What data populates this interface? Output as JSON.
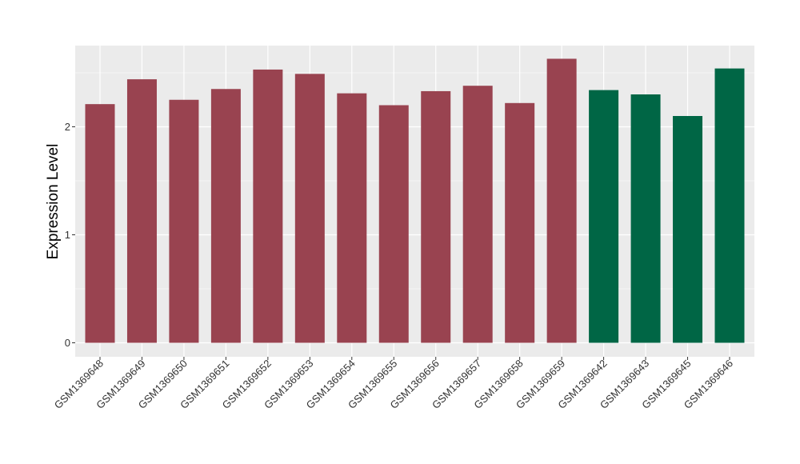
{
  "chart_data": {
    "type": "bar",
    "title": "",
    "xlabel": "",
    "ylabel": "Expression Level",
    "ylim": [
      -0.13,
      2.78
    ],
    "yticks": [
      0,
      1,
      2
    ],
    "grid": true,
    "legend": "none",
    "categories": [
      "GSM1369648",
      "GSM1369649",
      "GSM1369650",
      "GSM1369651",
      "GSM1369652",
      "GSM1369653",
      "GSM1369654",
      "GSM1369655",
      "GSM1369656",
      "GSM1369657",
      "GSM1369658",
      "GSM1369659",
      "GSM1369642",
      "GSM1369643",
      "GSM1369645",
      "GSM1369646"
    ],
    "values": [
      2.21,
      2.44,
      2.25,
      2.35,
      2.53,
      2.49,
      2.31,
      2.2,
      2.33,
      2.38,
      2.22,
      2.63,
      2.34,
      2.3,
      2.1,
      2.54
    ],
    "bar_colors": [
      "#994350",
      "#994350",
      "#994350",
      "#994350",
      "#994350",
      "#994350",
      "#994350",
      "#994350",
      "#994350",
      "#994350",
      "#994350",
      "#994350",
      "#006645",
      "#006645",
      "#006645",
      "#006645"
    ],
    "panel_background": "#EBEBEB",
    "grid_color": "#FFFFFF"
  }
}
